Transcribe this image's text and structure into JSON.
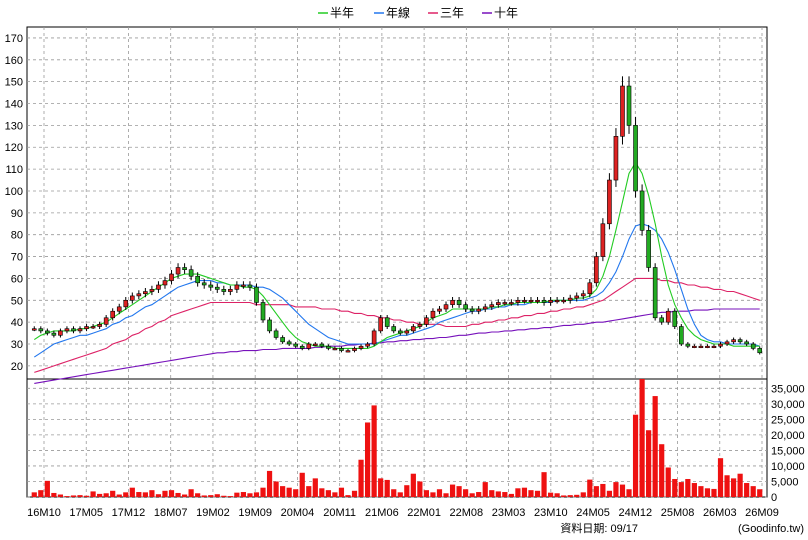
{
  "chart_data": {
    "type": "candlestick",
    "title": "",
    "legend": [
      {
        "label": "半年",
        "color": "#22cc22"
      },
      {
        "label": "年線",
        "color": "#2277ee"
      },
      {
        "label": "三年",
        "color": "#dd2266"
      },
      {
        "label": "十年",
        "color": "#7711bb"
      }
    ],
    "price_axis": {
      "ylim": [
        14,
        175
      ],
      "ticks": [
        20,
        30,
        40,
        50,
        60,
        70,
        80,
        90,
        100,
        110,
        120,
        130,
        140,
        150,
        160,
        170
      ]
    },
    "volume_axis": {
      "ylim": [
        0,
        38000
      ],
      "ticks": [
        0,
        5000,
        10000,
        15000,
        20000,
        25000,
        30000,
        35000
      ],
      "tick_labels": [
        "0",
        "5,000",
        "10,000",
        "15,000",
        "20,000",
        "25,000",
        "30,000",
        "35,000"
      ]
    },
    "x_ticks": [
      "16M10",
      "17M05",
      "17M12",
      "18M07",
      "19M02",
      "19M09",
      "20M04",
      "20M11",
      "21M06",
      "22M01",
      "22M08",
      "23M03",
      "23M10",
      "24M05",
      "24M12",
      "25M08",
      "26M03",
      "26M09"
    ],
    "candles_close": [
      37,
      36,
      35,
      34,
      36,
      37,
      36,
      37,
      38,
      38,
      39,
      42,
      45,
      47,
      50,
      52,
      53,
      54,
      55,
      57,
      59,
      62,
      65,
      64,
      61,
      58,
      57,
      56,
      55,
      54,
      55,
      57,
      57,
      56,
      49,
      41,
      36,
      33,
      31,
      30,
      29,
      28,
      30,
      30,
      29,
      28,
      28,
      27,
      27,
      28,
      29,
      30,
      36,
      42,
      38,
      36,
      35,
      36,
      38,
      39,
      42,
      45,
      46,
      48,
      50,
      48,
      46,
      45,
      46,
      47,
      48,
      49,
      49,
      49,
      50,
      50,
      50,
      50,
      49,
      50,
      50,
      50,
      51,
      52,
      53,
      58,
      70,
      85,
      105,
      125,
      148,
      130,
      100,
      82,
      65,
      42,
      40,
      45,
      38,
      30,
      29,
      29,
      29,
      29,
      29,
      30,
      31,
      32,
      31,
      30,
      28,
      26
    ],
    "sma_half_year": [
      32,
      34,
      35,
      36,
      36,
      36,
      36,
      37,
      37,
      38,
      39,
      40,
      42,
      44,
      46,
      48,
      50,
      52,
      54,
      56,
      58,
      60,
      61,
      62,
      62,
      62,
      61,
      60,
      59,
      58,
      57,
      57,
      56,
      56,
      55,
      52,
      48,
      44,
      40,
      36,
      33,
      31,
      30,
      29,
      29,
      29,
      28,
      28,
      28,
      28,
      28,
      28,
      29,
      31,
      33,
      34,
      35,
      36,
      37,
      38,
      40,
      42,
      43,
      44,
      46,
      46,
      46,
      46,
      46,
      46,
      47,
      47,
      48,
      48,
      49,
      49,
      49,
      49,
      49,
      50,
      50,
      50,
      50,
      51,
      51,
      52,
      55,
      61,
      70,
      82,
      95,
      108,
      113,
      108,
      98,
      85,
      70,
      57,
      48,
      42,
      37,
      34,
      32,
      31,
      30,
      30,
      30,
      29,
      29,
      29,
      29,
      29
    ],
    "sma_year": [
      24,
      26,
      28,
      30,
      31,
      32,
      33,
      34,
      34,
      35,
      36,
      37,
      39,
      40,
      42,
      43,
      45,
      47,
      48,
      50,
      52,
      54,
      56,
      57,
      58,
      59,
      59,
      59,
      58,
      58,
      57,
      57,
      57,
      57,
      56,
      56,
      55,
      53,
      51,
      48,
      45,
      42,
      39,
      37,
      35,
      33,
      32,
      31,
      30,
      30,
      30,
      30,
      30,
      31,
      32,
      33,
      34,
      34,
      35,
      36,
      37,
      38,
      40,
      41,
      42,
      43,
      44,
      45,
      45,
      46,
      46,
      47,
      47,
      48,
      48,
      48,
      49,
      49,
      49,
      49,
      50,
      50,
      50,
      50,
      50,
      51,
      52,
      54,
      58,
      63,
      70,
      78,
      84,
      85,
      84,
      82,
      78,
      72,
      64,
      55,
      46,
      39,
      34,
      32,
      31,
      31,
      30,
      30,
      30,
      30,
      30,
      29
    ],
    "sma_three_year": [
      17,
      18,
      19,
      20,
      21,
      22,
      23,
      24,
      25,
      26,
      27,
      28,
      30,
      31,
      32,
      34,
      35,
      37,
      38,
      40,
      41,
      43,
      44,
      45,
      46,
      47,
      48,
      49,
      49,
      49,
      49,
      49,
      49,
      49,
      48,
      48,
      48,
      48,
      48,
      48,
      47,
      47,
      47,
      47,
      46,
      46,
      46,
      45,
      45,
      44,
      44,
      43,
      43,
      42,
      42,
      41,
      41,
      40,
      40,
      39,
      39,
      39,
      39,
      38,
      38,
      38,
      38,
      39,
      39,
      40,
      40,
      41,
      41,
      42,
      42,
      43,
      43,
      44,
      44,
      45,
      45,
      46,
      46,
      47,
      47,
      48,
      49,
      50,
      52,
      54,
      56,
      58,
      60,
      60,
      60,
      60,
      59,
      59,
      58,
      58,
      57,
      57,
      56,
      56,
      55,
      55,
      54,
      54,
      53,
      52,
      51,
      50
    ],
    "sma_ten_year": [
      12,
      12.5,
      13,
      13.5,
      14,
      14.5,
      15,
      15.5,
      16,
      16.5,
      17,
      17.5,
      18,
      18.5,
      19,
      19.5,
      20,
      20.5,
      21,
      21.5,
      22,
      22.5,
      23,
      23.5,
      24,
      24.5,
      25,
      25.5,
      26,
      26,
      26.5,
      26.5,
      27,
      27,
      27,
      27.5,
      27.5,
      27.5,
      28,
      28,
      28,
      28,
      28,
      28.5,
      28.5,
      29,
      29,
      29,
      29.5,
      29.5,
      30,
      30,
      30.5,
      30.5,
      31,
      31,
      31.5,
      31.5,
      32,
      32,
      32.5,
      32.5,
      33,
      33,
      33.5,
      34,
      34,
      34.5,
      35,
      35,
      35.5,
      35.5,
      36,
      36,
      36.5,
      36.5,
      37,
      37,
      37.5,
      37.5,
      38,
      38.5,
      38.5,
      39,
      39,
      39.5,
      40,
      40,
      40.5,
      41,
      41.5,
      42,
      42.5,
      43,
      43.5,
      44,
      44.5,
      44.5,
      45,
      45,
      45,
      45.5,
      45.5,
      45.5,
      46,
      46,
      46,
      46,
      46,
      46,
      46,
      46
    ],
    "volume": [
      1500,
      2200,
      5200,
      1300,
      800,
      300,
      500,
      600,
      400,
      1800,
      1000,
      1200,
      2000,
      800,
      1500,
      3000,
      1600,
      1500,
      2200,
      900,
      2000,
      2200,
      1300,
      800,
      2500,
      1200,
      500,
      600,
      900,
      400,
      300,
      1400,
      1600,
      1200,
      1500,
      3000,
      8400,
      5000,
      3500,
      3000,
      2500,
      7800,
      3500,
      6000,
      2800,
      2200,
      1500,
      3000,
      600,
      2000,
      12000,
      24000,
      29500,
      6000,
      5500,
      2500,
      1500,
      3800,
      7500,
      5000,
      2200,
      1500,
      2500,
      1200,
      4000,
      3500,
      2500,
      1200,
      1600,
      4800,
      2200,
      1800,
      1600,
      1000,
      2800,
      3000,
      2200,
      2000,
      8000,
      1400,
      1200,
      500,
      600,
      700,
      1500,
      5600,
      3500,
      4200,
      2000,
      4800,
      4000,
      2500,
      26500,
      38000,
      21500,
      32500,
      17000,
      9500,
      5800,
      4800,
      5800,
      4500,
      3500,
      2800,
      2600,
      12500,
      7000,
      6000,
      7500,
      4500,
      3500,
      2500
    ]
  },
  "footer": {
    "date_label": "資料日期: 09/17",
    "source": "(Goodinfo.tw)"
  }
}
